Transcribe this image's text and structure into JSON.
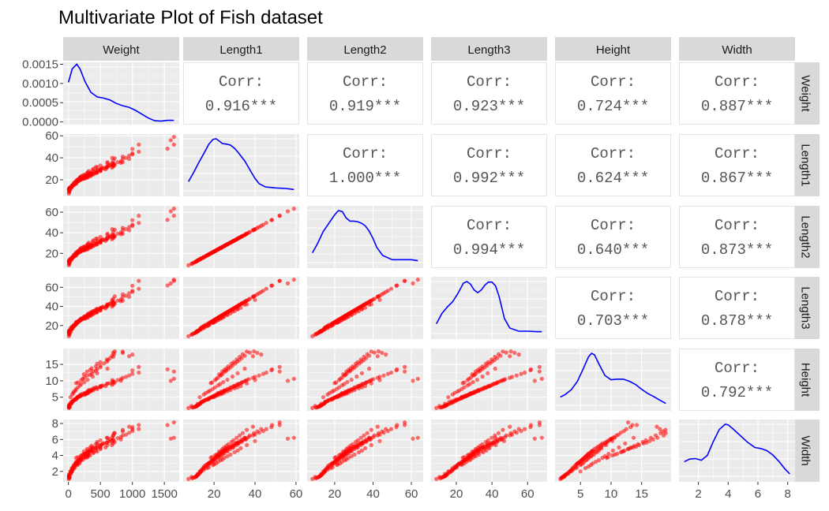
{
  "chart_data": {
    "type": "scatter-matrix",
    "title": "Multivariate Plot of Fish dataset",
    "variables": [
      "Weight",
      "Length1",
      "Length2",
      "Length3",
      "Height",
      "Width"
    ],
    "ranges": [
      [
        0,
        1650
      ],
      [
        7.5,
        59
      ],
      [
        8.4,
        63.4
      ],
      [
        8.8,
        68
      ],
      [
        1.7,
        18.96
      ],
      [
        1.05,
        8.14
      ]
    ],
    "axis_ticks": [
      [
        "0",
        "500",
        "1000",
        "1500"
      ],
      [
        "20",
        "40",
        "60"
      ],
      [
        "20",
        "40",
        "60"
      ],
      [
        "20",
        "40",
        "60"
      ],
      [
        "5",
        "10",
        "15"
      ],
      [
        "2",
        "4",
        "6",
        "8"
      ]
    ],
    "tick_values": [
      [
        0,
        500,
        1000,
        1500
      ],
      [
        20,
        40,
        60
      ],
      [
        20,
        40,
        60
      ],
      [
        20,
        40,
        60
      ],
      [
        5,
        10,
        15
      ],
      [
        2,
        4,
        6,
        8
      ]
    ],
    "density_y_ticks": [
      "0.0000",
      "0.0005",
      "0.0010",
      "0.0015"
    ],
    "density_y_tick_values": [
      0,
      0.0005,
      0.001,
      0.0015
    ],
    "density_y_range": [
      -7e-05,
      0.00155
    ],
    "corr_label": "Corr:",
    "correlations": [
      {
        "row": 0,
        "col": 1,
        "text": "0.916***"
      },
      {
        "row": 0,
        "col": 2,
        "text": "0.919***"
      },
      {
        "row": 0,
        "col": 3,
        "text": "0.923***"
      },
      {
        "row": 0,
        "col": 4,
        "text": "0.724***"
      },
      {
        "row": 0,
        "col": 5,
        "text": "0.887***"
      },
      {
        "row": 1,
        "col": 2,
        "text": "1.000***"
      },
      {
        "row": 1,
        "col": 3,
        "text": "0.992***"
      },
      {
        "row": 1,
        "col": 4,
        "text": "0.624***"
      },
      {
        "row": 1,
        "col": 5,
        "text": "0.867***"
      },
      {
        "row": 2,
        "col": 3,
        "text": "0.994***"
      },
      {
        "row": 2,
        "col": 4,
        "text": "0.640***"
      },
      {
        "row": 2,
        "col": 5,
        "text": "0.873***"
      },
      {
        "row": 3,
        "col": 4,
        "text": "0.703***"
      },
      {
        "row": 3,
        "col": 5,
        "text": "0.878***"
      },
      {
        "row": 4,
        "col": 5,
        "text": "0.792***"
      }
    ],
    "density_curves": [
      {
        "variable": "Weight",
        "x": [
          0,
          60,
          130,
          180,
          260,
          350,
          450,
          550,
          650,
          750,
          850,
          950,
          1050,
          1150,
          1250,
          1350,
          1450,
          1550,
          1650
        ],
        "y": [
          0.00103,
          0.00138,
          0.0015,
          0.00138,
          0.00105,
          0.00077,
          0.00065,
          0.00062,
          0.00057,
          0.00048,
          0.00042,
          0.00038,
          0.0003,
          0.0002,
          0.0001,
          3e-05,
          2e-05,
          4e-05,
          4e-05
        ]
      },
      {
        "variable": "Length1",
        "x": [
          7.5,
          10,
          12.5,
          15,
          17.5,
          19.5,
          21,
          22.5,
          24,
          26,
          28,
          30,
          32,
          35,
          38,
          40,
          42,
          45,
          50,
          55,
          59
        ],
        "y": [
          0.19,
          0.36,
          0.55,
          0.72,
          0.9,
          0.99,
          1.0,
          0.96,
          0.91,
          0.9,
          0.88,
          0.82,
          0.73,
          0.58,
          0.38,
          0.25,
          0.15,
          0.09,
          0.07,
          0.06,
          0.04
        ]
      },
      {
        "variable": "Length2",
        "x": [
          8.4,
          11,
          14,
          17,
          20,
          22,
          24,
          26,
          28,
          30,
          32,
          34,
          36,
          38,
          40,
          42,
          45,
          50,
          55,
          60,
          63.4
        ],
        "y": [
          0.2,
          0.37,
          0.6,
          0.76,
          0.92,
          1.0,
          0.98,
          0.86,
          0.8,
          0.8,
          0.79,
          0.76,
          0.71,
          0.61,
          0.47,
          0.3,
          0.15,
          0.07,
          0.07,
          0.07,
          0.05
        ]
      },
      {
        "variable": "Length3",
        "x": [
          8.8,
          12,
          15,
          18,
          21,
          24,
          26,
          28,
          30,
          32,
          34,
          36,
          38,
          40,
          42,
          44,
          47,
          50,
          55,
          60,
          65,
          68
        ],
        "y": [
          0.2,
          0.4,
          0.52,
          0.62,
          0.78,
          0.97,
          1.0,
          0.95,
          0.84,
          0.79,
          0.84,
          0.93,
          0.99,
          0.99,
          0.92,
          0.72,
          0.3,
          0.12,
          0.06,
          0.06,
          0.05,
          0.05
        ]
      },
      {
        "variable": "Height",
        "x": [
          1.7,
          2.5,
          3.5,
          4.5,
          5.5,
          6.3,
          6.8,
          7.3,
          8,
          9,
          10,
          11,
          12,
          13,
          14,
          15,
          16,
          17,
          18,
          18.96
        ],
        "y": [
          0.17,
          0.22,
          0.31,
          0.47,
          0.72,
          0.93,
          1.0,
          0.97,
          0.8,
          0.58,
          0.5,
          0.51,
          0.51,
          0.47,
          0.41,
          0.32,
          0.24,
          0.18,
          0.11,
          0.05
        ]
      },
      {
        "variable": "Width",
        "x": [
          1.05,
          1.4,
          1.8,
          2.2,
          2.6,
          3,
          3.4,
          3.8,
          4,
          4.3,
          4.8,
          5.3,
          5.8,
          6.2,
          6.6,
          7,
          7.4,
          7.8,
          8.14
        ],
        "y": [
          0.29,
          0.34,
          0.35,
          0.32,
          0.41,
          0.67,
          0.9,
          1.0,
          0.99,
          0.92,
          0.79,
          0.66,
          0.56,
          0.54,
          0.5,
          0.42,
          0.3,
          0.16,
          0.06
        ]
      }
    ],
    "data_points": {
      "Length1": [
        7.5,
        9.3,
        9.8,
        10.5,
        10.8,
        11.3,
        11.3,
        11.4,
        11.5,
        11.7,
        12.0,
        12.2,
        12.4,
        12.7,
        13.2,
        13.4,
        13.5,
        13.8,
        14.1,
        14.7,
        15.0,
        15.5,
        16.2,
        16.8,
        17.2,
        17.5,
        17.8,
        18.2,
        18.6,
        19.0,
        19.4,
        19.8,
        20.0,
        20.4,
        20.8,
        21.0,
        21.5,
        22.0,
        22.5,
        23.0,
        23.5,
        24.0,
        24.6,
        25.2,
        25.4,
        26.5,
        27.5,
        28.5,
        29.5,
        30.2,
        31.0,
        32.0,
        33.2,
        34.0,
        35.0,
        36.0,
        37.0,
        39.0,
        40.0,
        42.0,
        44.0,
        45.5,
        48.0,
        52.0,
        56.0,
        59.0,
        18.4,
        19.0,
        20.5,
        21.2,
        22.0,
        23.1,
        23.6,
        24.2,
        25.4,
        26.0,
        27.0,
        28.0,
        29.0,
        30.4,
        31.3,
        32.3,
        33.5,
        35.0,
        37.4,
        39.5,
        41.1,
        43.0,
        48.3,
        52.0,
        9.0,
        12.0,
        13.8,
        15.0,
        16.5,
        17.4,
        19.5,
        20.0,
        21.0,
        22.0,
        23.2,
        24.0,
        25.0,
        26.5,
        28.0,
        30.0,
        31.5,
        33.0,
        36.0,
        40.0,
        22.5,
        24.0,
        25.0,
        26.0,
        27.0,
        28.5,
        29.5,
        31.0,
        32.5,
        34.0,
        36.0,
        39.0,
        22.0,
        23.5,
        25.0,
        26.5,
        28.0,
        29.5,
        31.0,
        32.0,
        33.5,
        35.5,
        13.0,
        15.0,
        16.0,
        17.2,
        18.0,
        19.3,
        20.5,
        22.0,
        23.0,
        24.5,
        26.5,
        29.0,
        31.5,
        35.0
      ],
      "Weight": [
        5.9,
        9.8,
        12.2,
        19.7,
        9.7,
        10.0,
        8.7,
        9.9,
        10.5,
        12.2,
        13.4,
        12.2,
        19.9,
        19.7,
        40.0,
        51.5,
        32.0,
        55.0,
        60.0,
        55.0,
        80.0,
        85.0,
        115.0,
        120.0,
        110.0,
        125.0,
        130.0,
        135.0,
        150.0,
        160.0,
        160.0,
        180.0,
        188.0,
        200.0,
        220.0,
        250.0,
        270.0,
        270.0,
        300.0,
        260.0,
        300.0,
        300.0,
        320.0,
        345.0,
        360.0,
        350.0,
        400.0,
        450.0,
        500.0,
        520.0,
        540.0,
        600.0,
        650.0,
        700.0,
        700.0,
        770.0,
        820.0,
        850.0,
        900.0,
        950.0,
        1000.0,
        1100.0,
        1000.0,
        1100.0,
        1600.0,
        1650.0,
        120.0,
        150.0,
        200.0,
        225.0,
        250.0,
        290.0,
        340.0,
        363.0,
        390.0,
        430.0,
        450.0,
        500.0,
        500.0,
        556.0,
        600.0,
        620.0,
        650.0,
        680.0,
        700.0,
        725.0,
        850.0,
        1000.0,
        1550.0,
        1650.0,
        15.0,
        40.0,
        55.0,
        69.0,
        90.0,
        100.0,
        140.0,
        145.0,
        170.0,
        180.0,
        200.0,
        230.0,
        273.0,
        300.0,
        320.0,
        390.0,
        430.0,
        500.0,
        610.0,
        685.0,
        242.0,
        290.0,
        340.0,
        363.0,
        430.0,
        450.0,
        500.0,
        600.0,
        700.0,
        714.0,
        850.0,
        950.0,
        300.0,
        340.0,
        390.0,
        450.0,
        500.0,
        580.0,
        680.0,
        700.0,
        725.0,
        820.0,
        32.0,
        60.0,
        78.0,
        85.0,
        110.0,
        120.0,
        150.0,
        180.0,
        200.0,
        250.0,
        300.0,
        380.0,
        450.0,
        610.0
      ],
      "Length2": [
        8.4,
        10.2,
        10.6,
        11.3,
        11.6,
        12.0,
        12.1,
        12.2,
        12.5,
        12.8,
        13.0,
        13.2,
        13.5,
        13.8,
        14.4,
        14.6,
        14.9,
        15.0,
        15.3,
        15.8,
        16.4,
        16.7,
        17.6,
        18.4,
        18.5,
        19.0,
        19.4,
        19.8,
        20.2,
        20.6,
        21.1,
        21.5,
        21.7,
        22.2,
        22.7,
        22.9,
        23.4,
        24.0,
        24.5,
        25.1,
        25.5,
        26.1,
        26.8,
        27.4,
        27.7,
        28.8,
        29.9,
        31.0,
        32.1,
        32.8,
        33.7,
        34.8,
        36.1,
        37.0,
        38.0,
        39.1,
        40.2,
        42.4,
        43.5,
        45.6,
        47.8,
        49.5,
        52.2,
        56.5,
        60.8,
        63.4,
        20.0,
        20.7,
        22.3,
        23.0,
        23.9,
        25.1,
        25.6,
        26.3,
        27.6,
        28.3,
        29.4,
        30.4,
        31.5,
        33.0,
        34.0,
        35.1,
        36.4,
        38.0,
        40.7,
        42.9,
        44.7,
        46.7,
        52.5,
        56.5,
        9.8,
        13.0,
        15.0,
        16.3,
        17.9,
        18.9,
        21.2,
        21.7,
        22.8,
        23.9,
        25.2,
        26.1,
        27.2,
        28.8,
        30.4,
        32.6,
        34.2,
        35.9,
        39.1,
        43.5,
        24.5,
        26.1,
        27.2,
        28.3,
        29.4,
        31.0,
        32.1,
        33.7,
        35.3,
        37.0,
        39.1,
        42.4,
        23.9,
        25.6,
        27.2,
        28.8,
        30.4,
        32.1,
        33.7,
        34.8,
        36.4,
        38.6,
        14.1,
        16.3,
        17.4,
        18.7,
        19.6,
        21.0,
        22.3,
        23.9,
        25.0,
        26.6,
        28.8,
        31.5,
        34.2,
        38.0
      ],
      "Length3": [
        8.8,
        10.8,
        11.6,
        12.0,
        12.4,
        13.1,
        13.2,
        13.6,
        13.8,
        14.1,
        14.3,
        14.7,
        14.8,
        15.0,
        16.2,
        16.8,
        17.3,
        17.8,
        18.3,
        18.9,
        19.6,
        20.3,
        21.0,
        21.3,
        21.8,
        22.4,
        22.9,
        23.3,
        23.8,
        24.3,
        24.9,
        25.3,
        25.6,
        26.2,
        26.8,
        27.0,
        27.6,
        28.3,
        28.9,
        29.6,
        30.1,
        30.8,
        31.6,
        32.3,
        32.7,
        34.0,
        35.3,
        36.6,
        37.9,
        38.7,
        39.8,
        41.1,
        42.6,
        43.7,
        44.8,
        46.1,
        47.4,
        50.0,
        51.3,
        53.8,
        56.4,
        58.4,
        61.6,
        66.7,
        64.0,
        68.0,
        23.6,
        24.4,
        26.3,
        27.1,
        28.2,
        29.6,
        30.2,
        31.0,
        32.6,
        33.4,
        34.7,
        35.9,
        37.2,
        38.9,
        40.1,
        41.4,
        42.9,
        44.8,
        48.0,
        50.6,
        52.7,
        55.1,
        61.9,
        66.7,
        10.5,
        13.6,
        16.0,
        17.4,
        19.2,
        20.3,
        22.8,
        23.3,
        24.5,
        25.7,
        27.1,
        28.1,
        29.3,
        31.0,
        32.7,
        35.1,
        36.8,
        38.6,
        42.1,
        46.8,
        28.9,
        30.8,
        32.1,
        33.4,
        34.7,
        36.6,
        37.9,
        39.8,
        41.7,
        43.7,
        46.1,
        50.0,
        28.2,
        30.2,
        32.1,
        34.0,
        35.9,
        37.9,
        39.8,
        41.1,
        42.9,
        45.5,
        15.5,
        17.9,
        19.1,
        20.6,
        21.6,
        23.1,
        24.5,
        26.3,
        27.5,
        29.3,
        31.7,
        34.7,
        37.6,
        41.8
      ],
      "Height": [
        1.7,
        1.9,
        1.9,
        2.0,
        2.1,
        2.2,
        2.2,
        2.3,
        2.4,
        2.5,
        2.5,
        2.6,
        2.7,
        2.8,
        3.0,
        3.2,
        3.3,
        3.4,
        3.6,
        3.7,
        3.9,
        4.1,
        4.3,
        4.4,
        4.5,
        4.6,
        4.7,
        4.8,
        5.0,
        5.1,
        5.2,
        5.3,
        5.4,
        5.5,
        5.7,
        5.7,
        5.9,
        6.0,
        6.2,
        6.3,
        6.4,
        6.6,
        6.8,
        6.9,
        7.0,
        7.3,
        7.6,
        7.9,
        8.2,
        8.4,
        8.6,
        9.0,
        9.3,
        9.6,
        9.9,
        10.2,
        10.5,
        10.9,
        11.2,
        11.6,
        12.1,
        12.5,
        13.2,
        14.2,
        10.0,
        10.6,
        9.3,
        9.5,
        10.2,
        10.6,
        11.0,
        11.6,
        11.8,
        12.2,
        12.8,
        13.1,
        13.6,
        14.1,
        14.6,
        15.3,
        15.8,
        16.3,
        16.9,
        17.6,
        18.6,
        18.96,
        18.5,
        18.0,
        13.5,
        12.8,
        2.3,
        3.0,
        3.5,
        3.8,
        4.2,
        4.4,
        5.0,
        5.1,
        5.4,
        5.6,
        5.9,
        6.1,
        6.4,
        6.8,
        7.2,
        7.7,
        8.0,
        8.4,
        9.2,
        10.2,
        12.0,
        12.8,
        13.3,
        13.8,
        14.4,
        15.2,
        15.7,
        16.5,
        17.3,
        18.1,
        18.9,
        17.5,
        6.3,
        6.7,
        7.1,
        7.5,
        8.0,
        8.4,
        8.8,
        9.1,
        9.5,
        10.0,
        5.0,
        5.8,
        6.3,
        6.7,
        7.0,
        7.5,
        8.0,
        8.6,
        9.0,
        9.6,
        10.3,
        11.3,
        12.3,
        13.7
      ],
      "Width": [
        1.05,
        1.15,
        1.2,
        1.25,
        1.3,
        1.35,
        1.37,
        1.4,
        1.45,
        1.5,
        1.55,
        1.6,
        1.65,
        1.7,
        1.85,
        1.95,
        2.05,
        2.15,
        2.25,
        2.4,
        2.55,
        2.7,
        2.85,
        2.9,
        3.0,
        3.05,
        3.1,
        3.15,
        3.25,
        3.35,
        3.4,
        3.5,
        3.55,
        3.6,
        3.75,
        3.8,
        3.9,
        4.0,
        4.1,
        4.2,
        4.25,
        4.35,
        4.5,
        4.55,
        4.6,
        4.8,
        4.95,
        5.1,
        5.25,
        5.35,
        5.5,
        5.6,
        5.75,
        5.9,
        6.0,
        6.15,
        6.3,
        6.5,
        6.6,
        6.85,
        7.05,
        7.3,
        7.55,
        7.8,
        6.1,
        6.2,
        3.7,
        3.8,
        4.0,
        4.1,
        4.2,
        4.4,
        4.5,
        4.6,
        4.8,
        4.9,
        5.0,
        5.1,
        5.3,
        5.5,
        5.6,
        5.8,
        6.0,
        6.2,
        6.5,
        6.8,
        7.0,
        7.3,
        7.8,
        8.14,
        1.3,
        1.7,
        2.0,
        2.2,
        2.4,
        2.5,
        2.8,
        2.9,
        3.0,
        3.2,
        3.4,
        3.5,
        3.7,
        3.9,
        4.1,
        4.4,
        4.6,
        4.9,
        5.3,
        5.8,
        4.5,
        4.8,
        5.0,
        5.2,
        5.4,
        5.7,
        5.9,
        6.2,
        6.5,
        6.8,
        7.2,
        7.6,
        3.8,
        4.0,
        4.3,
        4.5,
        4.8,
        5.0,
        5.3,
        5.5,
        5.7,
        6.0,
        2.0,
        2.4,
        2.6,
        2.8,
        3.0,
        3.2,
        3.4,
        3.7,
        3.9,
        4.2,
        4.6,
        5.0,
        5.5,
        6.2
      ]
    },
    "colors": {
      "points": "#ff0000",
      "density_line": "#0000ff",
      "panel_background": "#ebebeb",
      "grid": "#ffffff",
      "strip": "#d9d9d9",
      "correlation_text": "#555555",
      "axis_text": "#4d4d4d"
    }
  }
}
